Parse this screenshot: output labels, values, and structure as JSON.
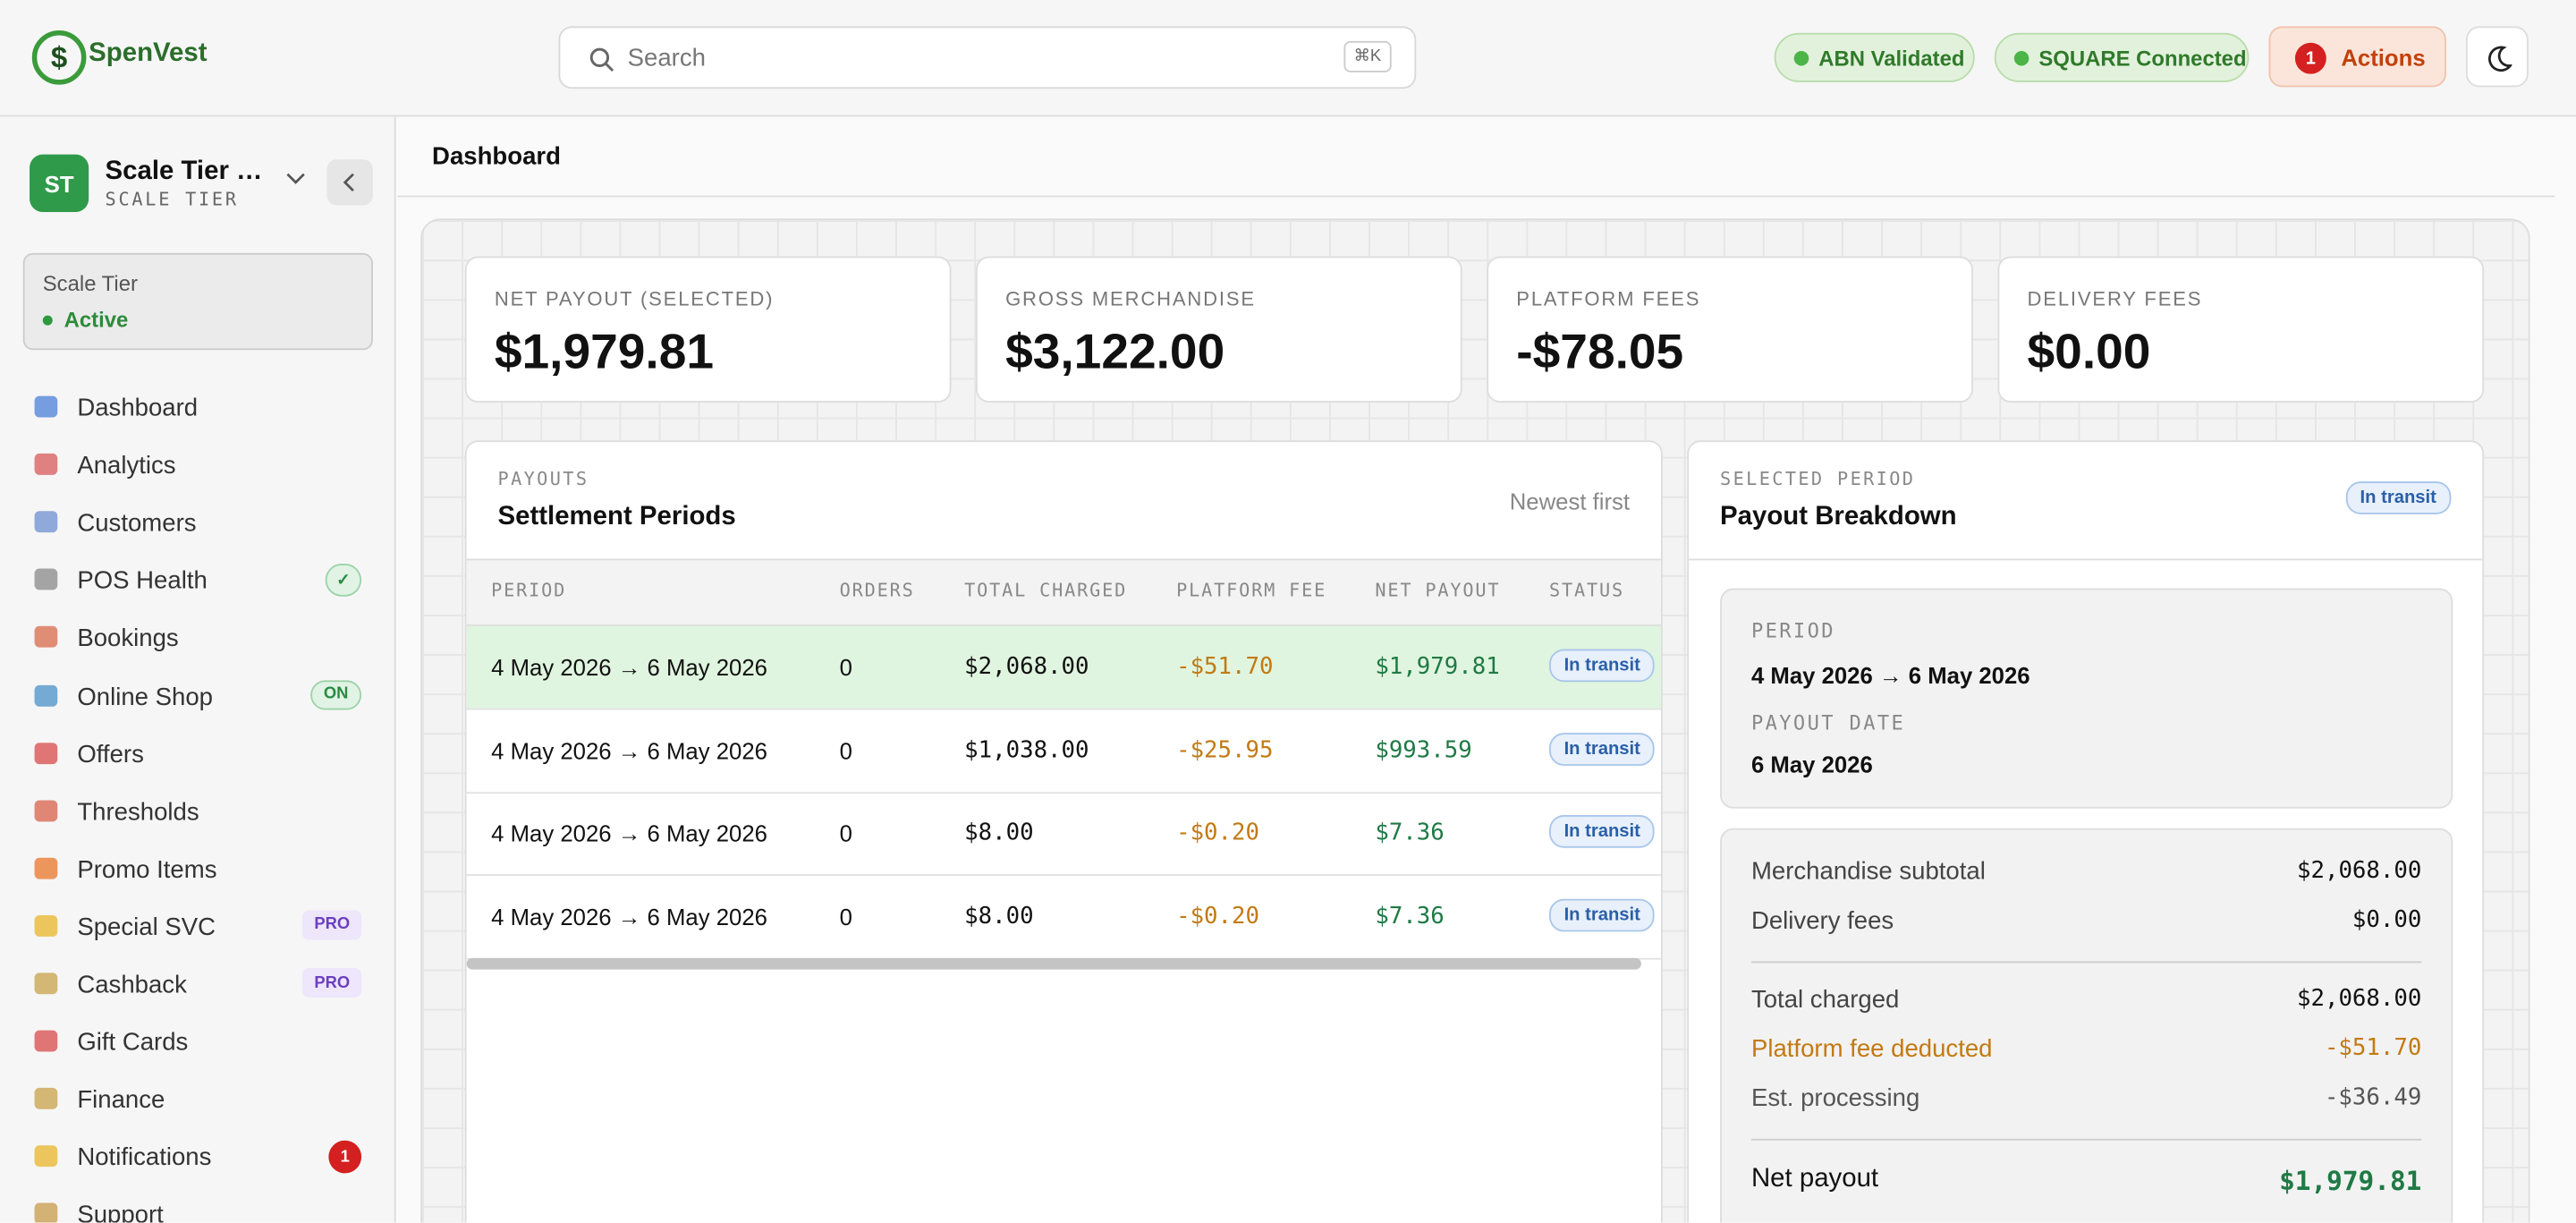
{
  "header": {
    "brand": "SpenVest",
    "search_placeholder": "Search",
    "search_shortcut": "⌘K",
    "badges": [
      "ABN Validated",
      "SQUARE Connected"
    ],
    "actions": {
      "count": "1",
      "label": "Actions"
    }
  },
  "sidebar": {
    "account": {
      "initials": "ST",
      "name": "Scale Tier …",
      "tier": "SCALE TIER"
    },
    "status": {
      "label": "Scale Tier",
      "state": "Active"
    },
    "nav": [
      {
        "label": "Dashboard"
      },
      {
        "label": "Analytics"
      },
      {
        "label": "Customers"
      },
      {
        "label": "POS Health",
        "badge": "✓"
      },
      {
        "label": "Bookings"
      },
      {
        "label": "Online Shop",
        "badge": "ON"
      },
      {
        "label": "Offers"
      },
      {
        "label": "Thresholds"
      },
      {
        "label": "Promo Items"
      },
      {
        "label": "Special SVC",
        "badge": "PRO"
      },
      {
        "label": "Cashback",
        "badge": "PRO"
      },
      {
        "label": "Gift Cards"
      },
      {
        "label": "Finance"
      },
      {
        "label": "Notifications",
        "badge": "1"
      },
      {
        "label": "Support"
      }
    ]
  },
  "page": {
    "title": "Dashboard"
  },
  "kpis": [
    {
      "label": "NET PAYOUT (SELECTED)",
      "value": "$1,979.81"
    },
    {
      "label": "GROSS MERCHANDISE",
      "value": "$3,122.00"
    },
    {
      "label": "PLATFORM FEES",
      "value": "-$78.05"
    },
    {
      "label": "DELIVERY FEES",
      "value": "$0.00"
    }
  ],
  "payouts": {
    "eyebrow": "PAYOUTS",
    "title": "Settlement Periods",
    "sort": "Newest first",
    "columns": [
      "PERIOD",
      "ORDERS",
      "TOTAL CHARGED",
      "PLATFORM FEE",
      "NET PAYOUT",
      "STATUS"
    ],
    "rows": [
      [
        "4 May 2026 → 6 May 2026",
        "0",
        "$2,068.00",
        "-$51.70",
        "$1,979.81",
        "In transit"
      ],
      [
        "4 May 2026 → 6 May 2026",
        "0",
        "$1,038.00",
        "-$25.95",
        "$993.59",
        "In transit"
      ],
      [
        "4 May 2026 → 6 May 2026",
        "0",
        "$8.00",
        "-$0.20",
        "$7.36",
        "In transit"
      ],
      [
        "4 May 2026 → 6 May 2026",
        "0",
        "$8.00",
        "-$0.20",
        "$7.36",
        "In transit"
      ]
    ]
  },
  "breakdown": {
    "eyebrow": "SELECTED PERIOD",
    "title": "Payout Breakdown",
    "status": "In transit",
    "period_label": "PERIOD",
    "period": "4 May 2026 → 6 May 2026",
    "date_label": "PAYOUT DATE",
    "date": "6 May 2026",
    "lines": [
      {
        "label": "Merchandise subtotal",
        "value": "$2,068.00"
      },
      {
        "label": "Delivery fees",
        "value": "$0.00"
      },
      {
        "label": "Total charged",
        "value": "$2,068.00"
      },
      {
        "label": "Platform fee deducted",
        "value": "-$51.70"
      },
      {
        "label": "Est. processing",
        "value": "-$36.49"
      }
    ],
    "net": {
      "label": "Net payout",
      "value": "$1,979.81"
    }
  }
}
